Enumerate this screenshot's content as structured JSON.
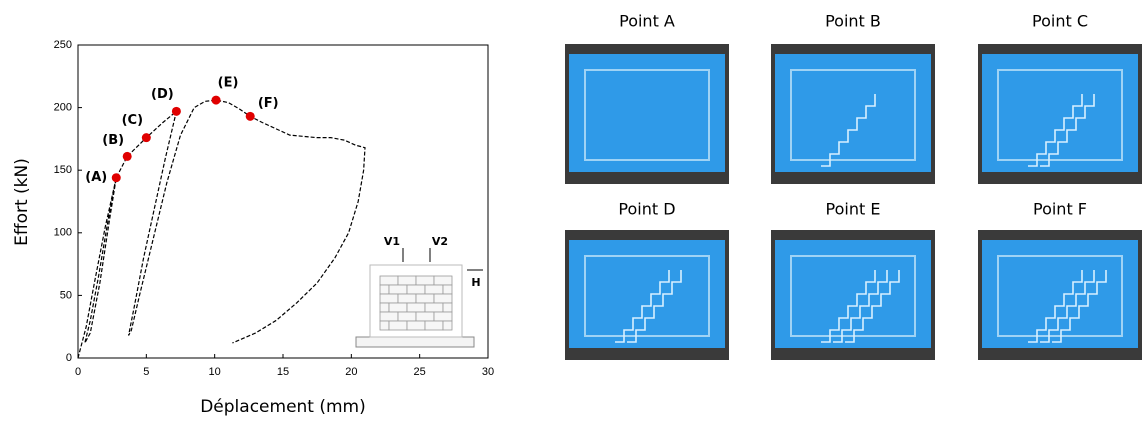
{
  "chart_data": {
    "type": "line",
    "x_label": "Déplacement (mm)",
    "y_label": "Effort (kN)",
    "xlim": [
      0,
      30
    ],
    "ylim": [
      0,
      250
    ],
    "xticks": [
      0,
      5,
      10,
      15,
      20,
      25,
      30
    ],
    "yticks": [
      0,
      50,
      100,
      150,
      200,
      250
    ],
    "series": [
      {
        "color": "#000000",
        "x": [
          0,
          0.6,
          1.2,
          2.0,
          2.8,
          2.2,
          1.5,
          0.9,
          0.5,
          0.9,
          1.6,
          2.3,
          2.8,
          3.6,
          5.0,
          6.2,
          7.2,
          6.4,
          5.6,
          4.8,
          4.1,
          3.7,
          3.9,
          4.5,
          5.5,
          6.5,
          7.5,
          8.5,
          9.3,
          10.1,
          11.0,
          11.8,
          12.6,
          13.5,
          14.5,
          15.5,
          16.5,
          17.5,
          18.5,
          19.5,
          20.3,
          21.0,
          20.9,
          20.5,
          19.8,
          18.8,
          17.5,
          16.0,
          14.5,
          13.0,
          11.3
        ],
        "values": [
          0,
          25,
          60,
          105,
          144,
          110,
          65,
          30,
          12,
          20,
          60,
          110,
          144,
          161,
          176,
          188,
          197,
          160,
          120,
          80,
          40,
          18,
          22,
          50,
          95,
          140,
          178,
          200,
          205,
          206,
          204,
          199,
          193,
          188,
          183,
          178,
          177,
          176,
          176,
          174,
          170,
          168,
          150,
          125,
          100,
          80,
          60,
          44,
          30,
          20,
          12
        ]
      }
    ],
    "points": {
      "color": "#e00000",
      "x": [
        2.8,
        3.6,
        5.0,
        7.2,
        10.1,
        12.6
      ],
      "values": [
        144,
        161,
        176,
        197,
        206,
        193
      ],
      "labels": [
        "(A)",
        "(B)",
        "(C)",
        "(D)",
        "(E)",
        "(F)"
      ]
    }
  },
  "inset": {
    "labels": [
      "V1",
      "V2",
      "H"
    ]
  },
  "panels": [
    "Point A",
    "Point B",
    "Point C",
    "Point D",
    "Point E",
    "Point F"
  ]
}
